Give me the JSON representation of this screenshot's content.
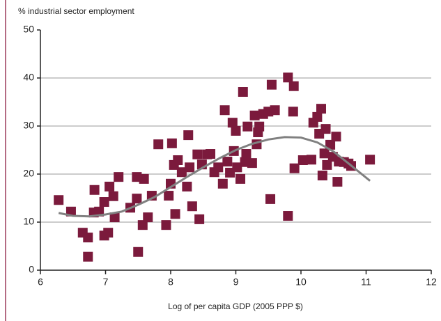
{
  "chart_data": {
    "type": "scatter",
    "y_label": "% industrial sector employment",
    "x_label": "Log of per capita GDP (2005 PPP $)",
    "xlim": [
      6,
      12
    ],
    "xticks": [
      6,
      7,
      8,
      9,
      10,
      11,
      12
    ],
    "ylim": [
      0,
      50
    ],
    "yticks": [
      0,
      10,
      20,
      30,
      40,
      50
    ],
    "grid": true,
    "series": [
      {
        "color": "#7b1a3c",
        "x": [
          6.28,
          6.47,
          6.65,
          6.73,
          6.73,
          6.83,
          6.82,
          6.9,
          6.98,
          6.98,
          7.04,
          7.06,
          7.12,
          7.14,
          7.2,
          7.38,
          7.48,
          7.48,
          7.5,
          7.57,
          7.59,
          7.65,
          7.71,
          7.81,
          7.93,
          7.97,
          8.0,
          8.02,
          8.05,
          8.07,
          8.11,
          8.17,
          8.25,
          8.27,
          8.29,
          8.33,
          8.41,
          8.44,
          8.48,
          8.56,
          8.61,
          8.67,
          8.73,
          8.8,
          8.83,
          8.87,
          8.91,
          8.95,
          8.97,
          9.0,
          9.02,
          9.07,
          9.11,
          9.14,
          9.16,
          9.18,
          9.25,
          9.29,
          9.32,
          9.34,
          9.36,
          9.42,
          9.5,
          9.55,
          9.53,
          9.6,
          9.8,
          9.8,
          9.89,
          9.88,
          9.9,
          10.03,
          10.16,
          10.19,
          10.25,
          10.28,
          10.31,
          10.33,
          10.36,
          10.38,
          10.4,
          10.45,
          10.49,
          10.54,
          10.56,
          10.58,
          10.66,
          10.73,
          10.77,
          11.06
        ],
        "values": [
          14.6,
          12.2,
          7.8,
          6.8,
          2.8,
          16.7,
          12,
          12.2,
          14.2,
          7.2,
          7.8,
          17.4,
          15.4,
          11,
          19.4,
          13,
          14.9,
          19.4,
          3.8,
          9.4,
          19,
          11,
          15.5,
          26.2,
          9.4,
          15.5,
          18,
          26.4,
          21.9,
          11.7,
          22.9,
          20.4,
          17.4,
          28.1,
          21.4,
          13.3,
          24.1,
          10.6,
          22,
          24.1,
          24.2,
          20.4,
          21.4,
          18,
          33.3,
          22.6,
          20.3,
          30.7,
          24.8,
          29,
          21.4,
          19,
          37.1,
          22.5,
          24.2,
          29.9,
          22.3,
          32.2,
          26.2,
          28.7,
          29.9,
          32.5,
          33,
          38.6,
          14.8,
          33.3,
          40.1,
          11.3,
          38.3,
          33,
          21.2,
          22.9,
          23,
          30.7,
          31.9,
          28.4,
          33.6,
          19.7,
          24.3,
          29.4,
          21.9,
          26.1,
          23.6,
          27.8,
          18.4,
          22.6,
          22.5,
          22.2,
          21.7,
          23
        ]
      }
    ],
    "fit_line": {
      "color": "#808080",
      "x": [
        6.28,
        6.5,
        6.75,
        7,
        7.25,
        7.5,
        7.75,
        8,
        8.25,
        8.5,
        8.75,
        9,
        9.25,
        9.5,
        9.75,
        10,
        10.25,
        10.5,
        10.75,
        11.06
      ],
      "values": [
        11.9,
        11.3,
        11.2,
        11.6,
        12.2,
        13.6,
        15.2,
        17.3,
        19.4,
        21.4,
        23.3,
        25,
        26.3,
        27.2,
        27.7,
        27.6,
        26.6,
        24.7,
        22,
        18.6
      ]
    }
  }
}
